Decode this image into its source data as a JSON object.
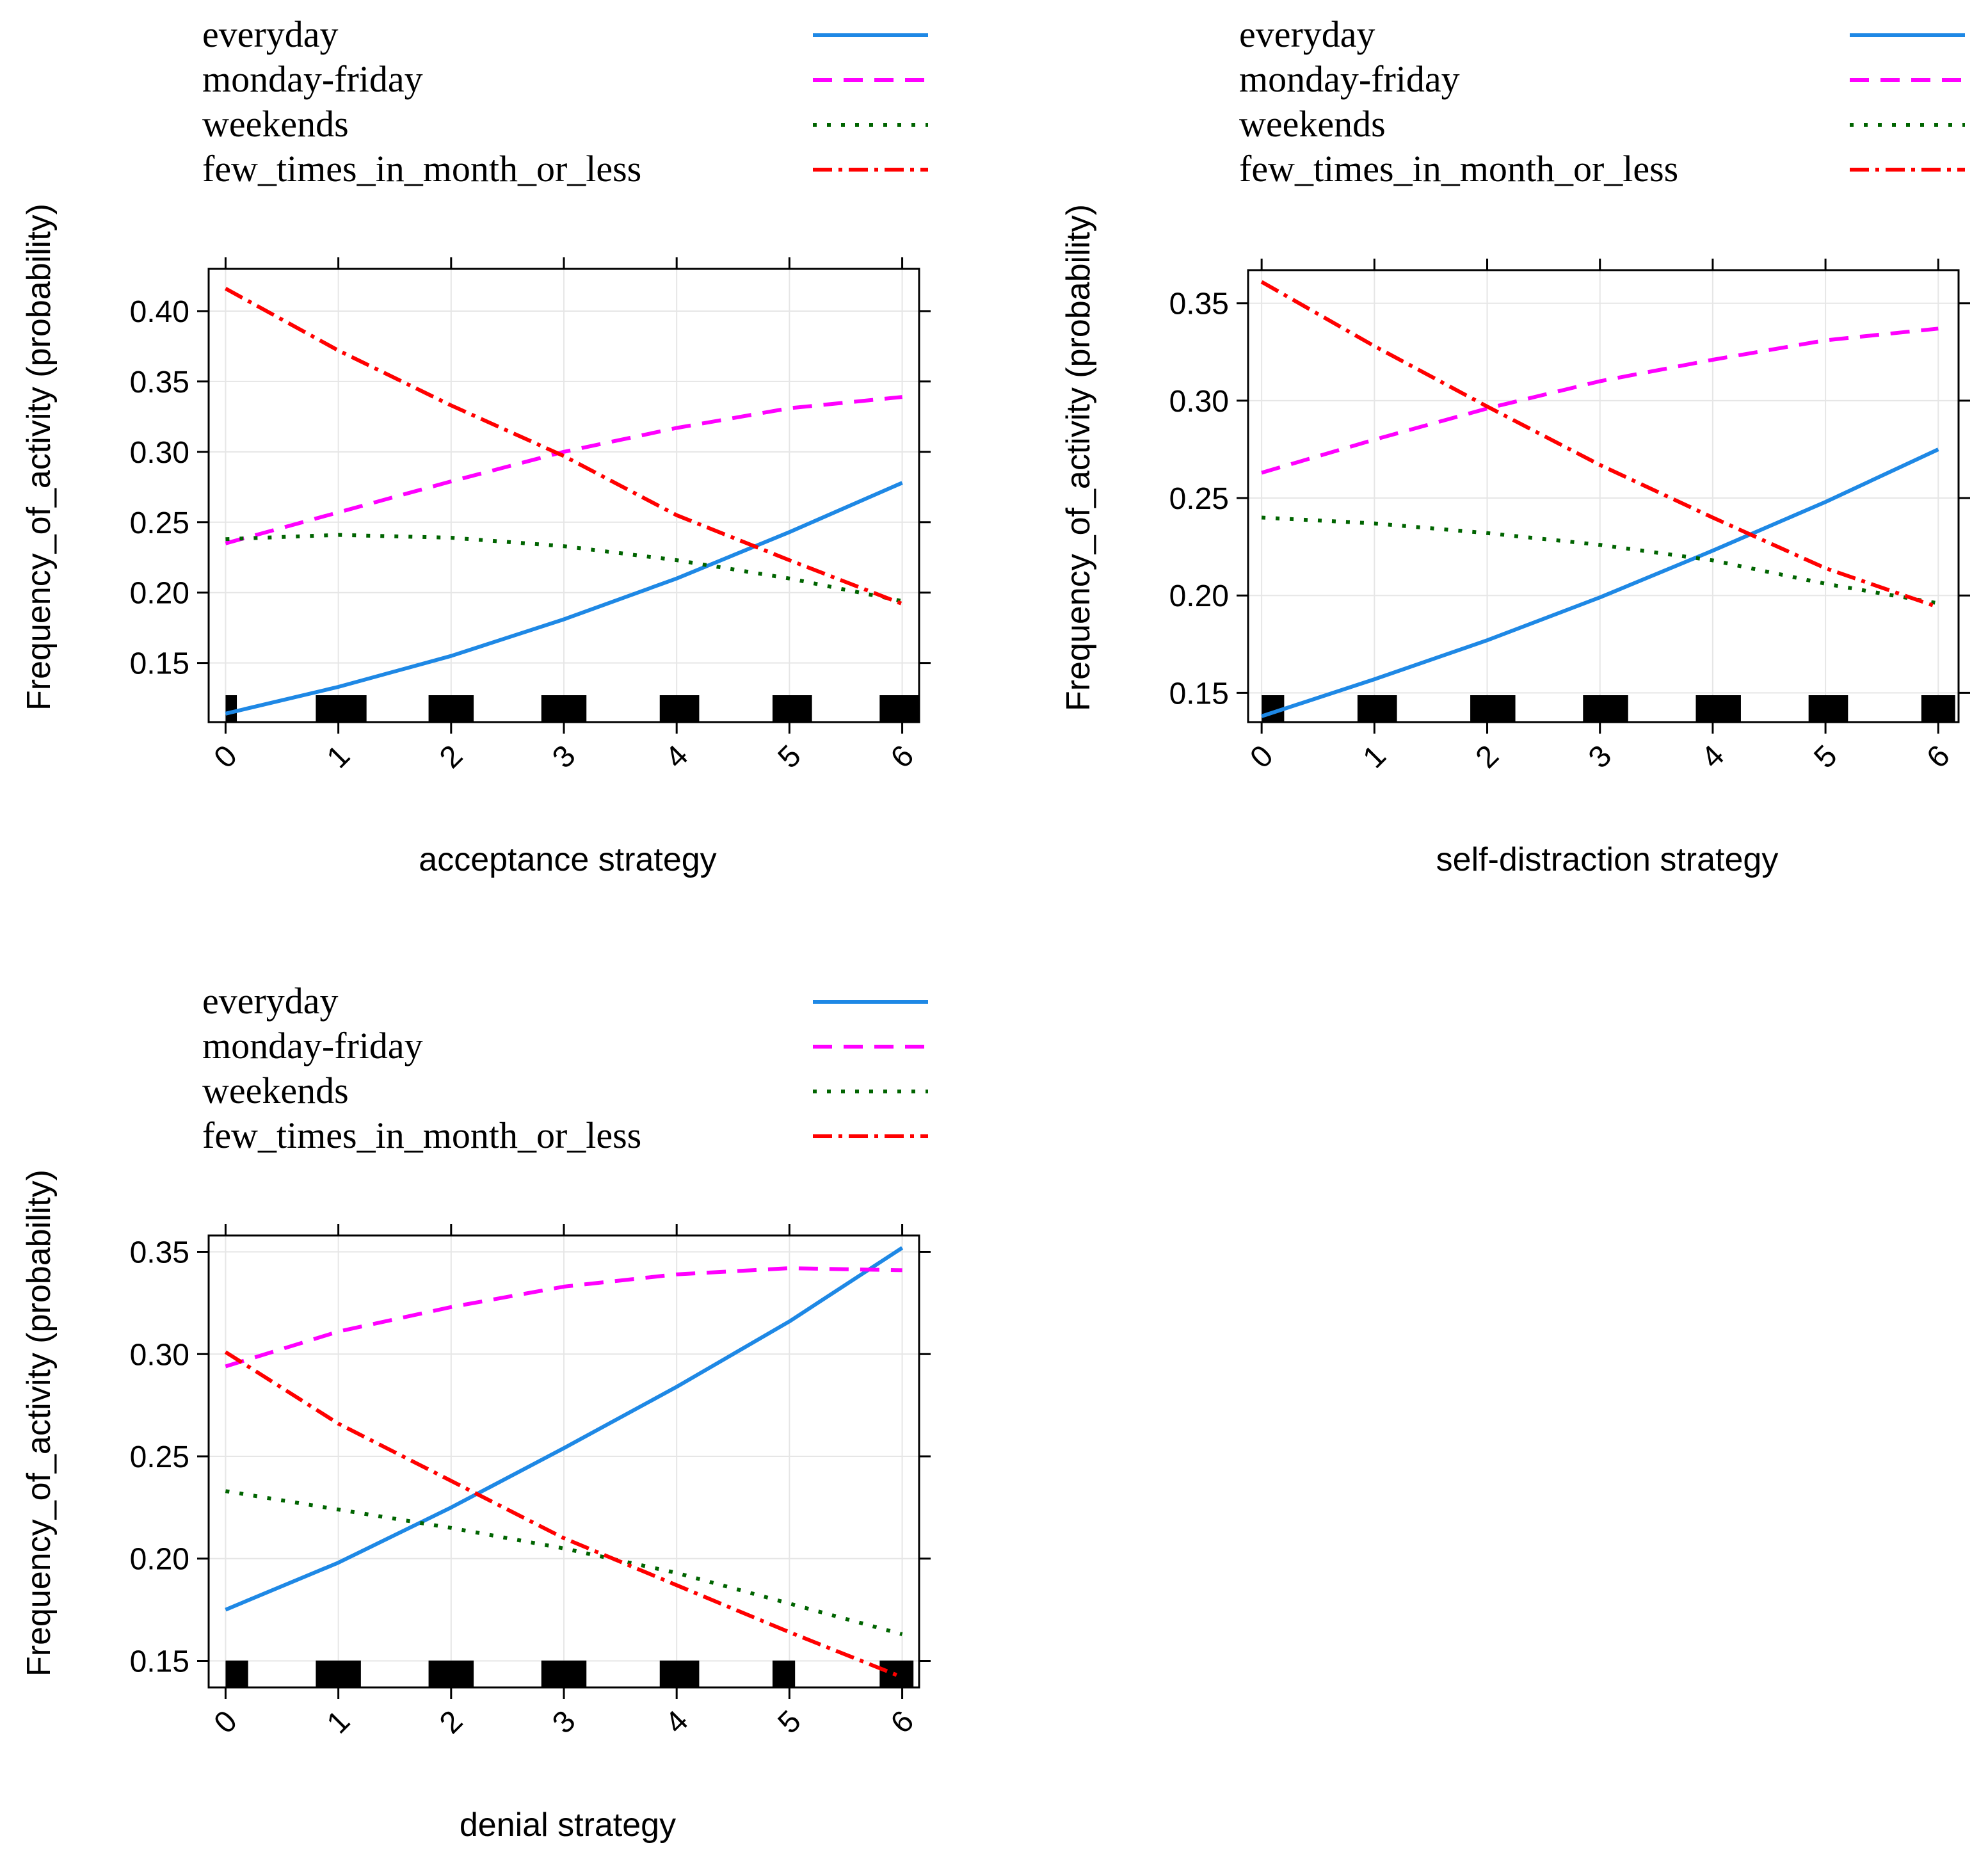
{
  "legend": {
    "entries": [
      "everyday",
      "monday-friday",
      "weekends",
      "few_times_in_month_or_less"
    ],
    "colors": [
      "#1e88e5",
      "#ff00ff",
      "#006400",
      "#ff0000"
    ]
  },
  "chart_data": [
    {
      "type": "line",
      "title": "",
      "xlabel": "acceptance strategy",
      "ylabel": "Frequency_of_activity (probability)",
      "xlim": [
        -0.15,
        6.15
      ],
      "ylim": [
        0.108,
        0.43
      ],
      "x_ticks": [
        "0",
        "1",
        "2",
        "3",
        "4",
        "5",
        "6"
      ],
      "y_ticks": [
        "0.15",
        "0.20",
        "0.25",
        "0.30",
        "0.35",
        "0.40"
      ],
      "x": [
        0,
        1,
        2,
        3,
        4,
        5,
        6
      ],
      "series": [
        {
          "name": "everyday",
          "values": [
            0.114,
            0.133,
            0.155,
            0.181,
            0.21,
            0.243,
            0.278
          ]
        },
        {
          "name": "monday-friday",
          "values": [
            0.235,
            0.257,
            0.279,
            0.3,
            0.317,
            0.331,
            0.339
          ]
        },
        {
          "name": "weekends",
          "values": [
            0.238,
            0.241,
            0.239,
            0.233,
            0.223,
            0.21,
            0.194
          ]
        },
        {
          "name": "few_times_in_month_or_less",
          "values": [
            0.416,
            0.372,
            0.333,
            0.297,
            0.255,
            0.223,
            0.192
          ]
        }
      ],
      "rug": [
        [
          0,
          0.1
        ],
        [
          0.8,
          1.25
        ],
        [
          1.8,
          2.2
        ],
        [
          2.8,
          3.2
        ],
        [
          3.85,
          4.2
        ],
        [
          4.85,
          5.2
        ],
        [
          5.8,
          6.15
        ]
      ]
    },
    {
      "type": "line",
      "title": "",
      "xlabel": "self-distraction strategy",
      "ylabel": "Frequency_of_activity (probability)",
      "xlim": [
        -0.12,
        6.18
      ],
      "ylim": [
        0.135,
        0.367
      ],
      "x_ticks": [
        "0",
        "1",
        "2",
        "3",
        "4",
        "5",
        "6"
      ],
      "y_ticks": [
        "0.15",
        "0.20",
        "0.25",
        "0.30",
        "0.35"
      ],
      "x": [
        0,
        1,
        2,
        3,
        4,
        5,
        6
      ],
      "series": [
        {
          "name": "everyday",
          "values": [
            0.138,
            0.157,
            0.177,
            0.199,
            0.223,
            0.248,
            0.275
          ]
        },
        {
          "name": "monday-friday",
          "values": [
            0.263,
            0.28,
            0.296,
            0.31,
            0.321,
            0.331,
            0.337
          ]
        },
        {
          "name": "weekends",
          "values": [
            0.24,
            0.237,
            0.232,
            0.226,
            0.218,
            0.206,
            0.196
          ]
        },
        {
          "name": "few_times_in_month_or_less",
          "values": [
            0.361,
            0.328,
            0.297,
            0.267,
            0.24,
            0.214,
            0.194
          ]
        }
      ],
      "rug": [
        [
          0,
          0.2
        ],
        [
          0.85,
          1.2
        ],
        [
          1.85,
          2.25
        ],
        [
          2.85,
          3.25
        ],
        [
          3.85,
          4.25
        ],
        [
          4.85,
          5.2
        ],
        [
          5.85,
          6.15
        ]
      ]
    },
    {
      "type": "line",
      "title": "",
      "xlabel": "denial strategy",
      "ylabel": "Frequency_of_activity (probability)",
      "xlim": [
        -0.15,
        6.15
      ],
      "ylim": [
        0.137,
        0.358
      ],
      "x_ticks": [
        "0",
        "1",
        "2",
        "3",
        "4",
        "5",
        "6"
      ],
      "y_ticks": [
        "0.15",
        "0.20",
        "0.25",
        "0.30",
        "0.35"
      ],
      "x": [
        0,
        1,
        2,
        3,
        4,
        5,
        6
      ],
      "series": [
        {
          "name": "everyday",
          "values": [
            0.175,
            0.198,
            0.225,
            0.254,
            0.284,
            0.316,
            0.352
          ]
        },
        {
          "name": "monday-friday",
          "values": [
            0.294,
            0.311,
            0.323,
            0.333,
            0.339,
            0.342,
            0.341
          ]
        },
        {
          "name": "weekends",
          "values": [
            0.233,
            0.224,
            0.215,
            0.205,
            0.193,
            0.178,
            0.163
          ]
        },
        {
          "name": "few_times_in_month_or_less",
          "values": [
            0.301,
            0.266,
            0.238,
            0.21,
            0.187,
            0.164,
            0.142
          ]
        }
      ],
      "rug": [
        [
          0,
          0.2
        ],
        [
          0.8,
          1.2
        ],
        [
          1.8,
          2.2
        ],
        [
          2.8,
          3.2
        ],
        [
          3.85,
          4.2
        ],
        [
          4.85,
          5.05
        ],
        [
          5.8,
          6.1
        ]
      ]
    }
  ]
}
